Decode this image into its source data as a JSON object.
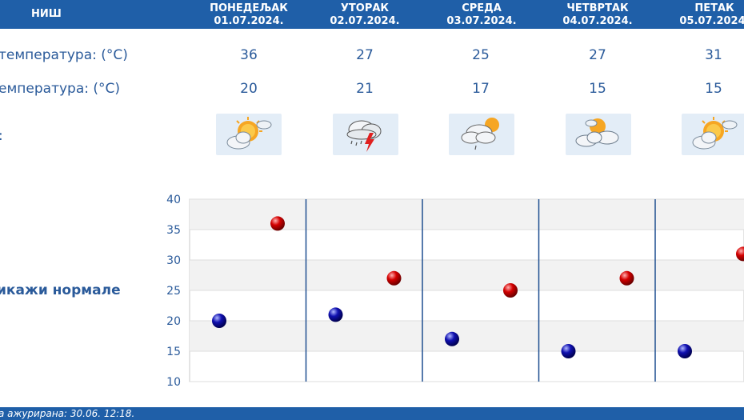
{
  "header": {
    "city": "НИШ",
    "days": [
      {
        "name": "ПОНЕДЕЉАК",
        "date": "01.07.2024."
      },
      {
        "name": "УТОРАК",
        "date": "02.07.2024."
      },
      {
        "name": "СРЕДА",
        "date": "03.07.2024."
      },
      {
        "name": "ЧЕТВРТАК",
        "date": "04.07.2024."
      },
      {
        "name": "ПЕТАК",
        "date": "05.07.2024."
      }
    ]
  },
  "rows": {
    "max_label": "температура: (°C)",
    "min_label": "емпература: (°C)",
    "weather_label": ":",
    "max": [
      "36",
      "27",
      "25",
      "27",
      "31"
    ],
    "min": [
      "20",
      "21",
      "17",
      "15",
      "15"
    ],
    "icons": [
      "sun-cloud-icon",
      "thunderstorm-icon",
      "cloud-sun-rain-icon",
      "cloud-sun-icon",
      "sun-cloud-icon"
    ]
  },
  "norm_link": "икажи нормале",
  "footer": "а ажурирана:  30.06.  12:18.",
  "colors": {
    "accent": "#1f5fa8",
    "text": "#2a5a9a",
    "max_marker": "#d40000",
    "min_marker": "#1010b0"
  },
  "chart_data": {
    "type": "scatter",
    "categories": [
      "01.07.2024.",
      "02.07.2024.",
      "03.07.2024.",
      "04.07.2024.",
      "05.07.2024."
    ],
    "series": [
      {
        "values": [
          20,
          21,
          17,
          15,
          15
        ]
      },
      {
        "values": [
          36,
          27,
          25,
          27,
          31
        ]
      }
    ],
    "yticks": [
      "10",
      "15",
      "20",
      "25",
      "30",
      "35",
      "40"
    ],
    "ylim": [
      10,
      40
    ],
    "grid": true
  }
}
